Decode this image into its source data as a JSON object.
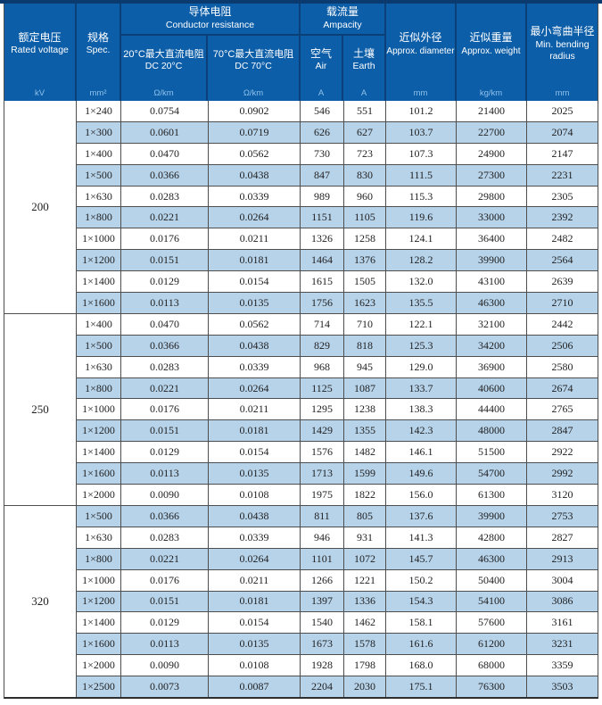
{
  "colors": {
    "header_blue": "#0c5ea8",
    "header_line": "#0a4076",
    "top_band_navy": "#0a3a6e",
    "alt_row_blue": "#b7d3ea",
    "grid_gray": "#4e4e4e",
    "unit_text_blue": "#8fc1ea"
  },
  "header": {
    "rated_voltage": {
      "zh": "额定电压",
      "en": "Rated voltage",
      "unit": "kV"
    },
    "spec": {
      "zh": "规格",
      "en": "Spec.",
      "unit": "mm²"
    },
    "conductor_resistance": {
      "zh": "导体电阻",
      "en": "Conductor resistance"
    },
    "dc20": {
      "zh": "20°C最大直流电阻",
      "en": "DC 20°C",
      "unit": "Ω/km"
    },
    "dc70": {
      "zh": "70°C最大直流电阻",
      "en": "DC 70°C",
      "unit": "Ω/km"
    },
    "ampacity": {
      "zh": "载流量",
      "en": "Ampacity"
    },
    "air": {
      "zh": "空气",
      "en": "Air",
      "unit": "A"
    },
    "earth": {
      "zh": "土壤",
      "en": "Earth",
      "unit": "A"
    },
    "diameter": {
      "zh": "近似外径",
      "en": "Approx. diameter",
      "unit": "mm"
    },
    "weight": {
      "zh": "近似重量",
      "en": "Approx. weight",
      "unit": "kg/km"
    },
    "bending": {
      "zh": "最小弯曲半径",
      "en": "Min. bending radius",
      "unit": "mm"
    }
  },
  "groups": [
    {
      "voltage": "200",
      "rows": [
        {
          "spec": "1×240",
          "dc20": "0.0754",
          "dc70": "0.0902",
          "air": "546",
          "earth": "551",
          "diameter": "101.2",
          "weight": "21400",
          "bending": "2025"
        },
        {
          "spec": "1×300",
          "dc20": "0.0601",
          "dc70": "0.0719",
          "air": "626",
          "earth": "627",
          "diameter": "103.7",
          "weight": "22700",
          "bending": "2074"
        },
        {
          "spec": "1×400",
          "dc20": "0.0470",
          "dc70": "0.0562",
          "air": "730",
          "earth": "723",
          "diameter": "107.3",
          "weight": "24900",
          "bending": "2147"
        },
        {
          "spec": "1×500",
          "dc20": "0.0366",
          "dc70": "0.0438",
          "air": "847",
          "earth": "830",
          "diameter": "111.5",
          "weight": "27300",
          "bending": "2231"
        },
        {
          "spec": "1×630",
          "dc20": "0.0283",
          "dc70": "0.0339",
          "air": "989",
          "earth": "960",
          "diameter": "115.3",
          "weight": "29800",
          "bending": "2305"
        },
        {
          "spec": "1×800",
          "dc20": "0.0221",
          "dc70": "0.0264",
          "air": "1151",
          "earth": "1105",
          "diameter": "119.6",
          "weight": "33000",
          "bending": "2392"
        },
        {
          "spec": "1×1000",
          "dc20": "0.0176",
          "dc70": "0.0211",
          "air": "1326",
          "earth": "1258",
          "diameter": "124.1",
          "weight": "36400",
          "bending": "2482"
        },
        {
          "spec": "1×1200",
          "dc20": "0.0151",
          "dc70": "0.0181",
          "air": "1464",
          "earth": "1376",
          "diameter": "128.2",
          "weight": "39900",
          "bending": "2564"
        },
        {
          "spec": "1×1400",
          "dc20": "0.0129",
          "dc70": "0.0154",
          "air": "1615",
          "earth": "1505",
          "diameter": "132.0",
          "weight": "43100",
          "bending": "2639"
        },
        {
          "spec": "1×1600",
          "dc20": "0.0113",
          "dc70": "0.0135",
          "air": "1756",
          "earth": "1623",
          "diameter": "135.5",
          "weight": "46300",
          "bending": "2710"
        }
      ]
    },
    {
      "voltage": "250",
      "rows": [
        {
          "spec": "1×400",
          "dc20": "0.0470",
          "dc70": "0.0562",
          "air": "714",
          "earth": "710",
          "diameter": "122.1",
          "weight": "32100",
          "bending": "2442"
        },
        {
          "spec": "1×500",
          "dc20": "0.0366",
          "dc70": "0.0438",
          "air": "829",
          "earth": "818",
          "diameter": "125.3",
          "weight": "34200",
          "bending": "2506"
        },
        {
          "spec": "1×630",
          "dc20": "0.0283",
          "dc70": "0.0339",
          "air": "968",
          "earth": "945",
          "diameter": "129.0",
          "weight": "36900",
          "bending": "2580"
        },
        {
          "spec": "1×800",
          "dc20": "0.0221",
          "dc70": "0.0264",
          "air": "1125",
          "earth": "1087",
          "diameter": "133.7",
          "weight": "40600",
          "bending": "2674"
        },
        {
          "spec": "1×1000",
          "dc20": "0.0176",
          "dc70": "0.0211",
          "air": "1295",
          "earth": "1238",
          "diameter": "138.3",
          "weight": "44400",
          "bending": "2765"
        },
        {
          "spec": "1×1200",
          "dc20": "0.0151",
          "dc70": "0.0181",
          "air": "1429",
          "earth": "1355",
          "diameter": "142.3",
          "weight": "48000",
          "bending": "2847"
        },
        {
          "spec": "1×1400",
          "dc20": "0.0129",
          "dc70": "0.0154",
          "air": "1576",
          "earth": "1482",
          "diameter": "146.1",
          "weight": "51500",
          "bending": "2922"
        },
        {
          "spec": "1×1600",
          "dc20": "0.0113",
          "dc70": "0.0135",
          "air": "1713",
          "earth": "1599",
          "diameter": "149.6",
          "weight": "54700",
          "bending": "2992"
        },
        {
          "spec": "1×2000",
          "dc20": "0.0090",
          "dc70": "0.0108",
          "air": "1975",
          "earth": "1822",
          "diameter": "156.0",
          "weight": "61300",
          "bending": "3120"
        }
      ]
    },
    {
      "voltage": "320",
      "rows": [
        {
          "spec": "1×500",
          "dc20": "0.0366",
          "dc70": "0.0438",
          "air": "811",
          "earth": "805",
          "diameter": "137.6",
          "weight": "39900",
          "bending": "2753"
        },
        {
          "spec": "1×630",
          "dc20": "0.0283",
          "dc70": "0.0339",
          "air": "946",
          "earth": "931",
          "diameter": "141.3",
          "weight": "42800",
          "bending": "2827"
        },
        {
          "spec": "1×800",
          "dc20": "0.0221",
          "dc70": "0.0264",
          "air": "1101",
          "earth": "1072",
          "diameter": "145.7",
          "weight": "46300",
          "bending": "2913"
        },
        {
          "spec": "1×1000",
          "dc20": "0.0176",
          "dc70": "0.0211",
          "air": "1266",
          "earth": "1221",
          "diameter": "150.2",
          "weight": "50400",
          "bending": "3004"
        },
        {
          "spec": "1×1200",
          "dc20": "0.0151",
          "dc70": "0.0181",
          "air": "1397",
          "earth": "1336",
          "diameter": "154.3",
          "weight": "54100",
          "bending": "3086"
        },
        {
          "spec": "1×1400",
          "dc20": "0.0129",
          "dc70": "0.0154",
          "air": "1540",
          "earth": "1462",
          "diameter": "158.1",
          "weight": "57600",
          "bending": "3161"
        },
        {
          "spec": "1×1600",
          "dc20": "0.0113",
          "dc70": "0.0135",
          "air": "1673",
          "earth": "1578",
          "diameter": "161.6",
          "weight": "61200",
          "bending": "3231"
        },
        {
          "spec": "1×2000",
          "dc20": "0.0090",
          "dc70": "0.0108",
          "air": "1928",
          "earth": "1798",
          "diameter": "168.0",
          "weight": "68000",
          "bending": "3359"
        },
        {
          "spec": "1×2500",
          "dc20": "0.0073",
          "dc70": "0.0087",
          "air": "2204",
          "earth": "2030",
          "diameter": "175.1",
          "weight": "76300",
          "bending": "3503"
        }
      ]
    }
  ]
}
